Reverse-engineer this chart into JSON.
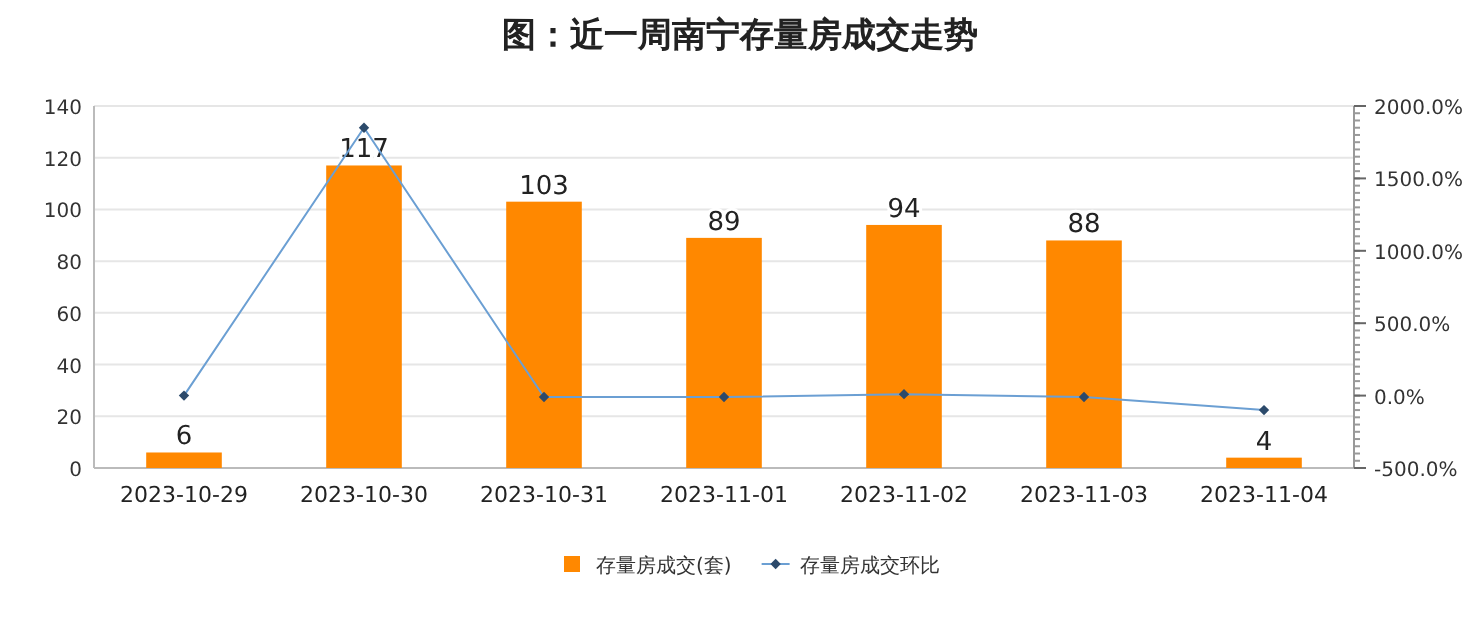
{
  "chart_data": {
    "type": "bar",
    "title": "图：近一周南宁存量房成交走势",
    "categories": [
      "2023-10-29",
      "2023-10-30",
      "2023-10-31",
      "2023-11-01",
      "2023-11-02",
      "2023-11-03",
      "2023-11-04"
    ],
    "series": [
      {
        "name": "存量房成交(套)",
        "color": "#ff8800",
        "values": [
          6,
          117,
          103,
          89,
          94,
          88,
          4
        ],
        "value_labels": [
          "6",
          "117",
          "103",
          "89",
          "94",
          "88",
          "4"
        ]
      },
      {
        "name": "存量房成交环比",
        "type": "line",
        "axis": "y2",
        "color": "#6b9fd3",
        "values": [
          0,
          1850,
          -10,
          -10,
          10,
          -10,
          -100
        ]
      }
    ],
    "marker": "diamond",
    "ylim": [
      0,
      140
    ],
    "yticks": [
      0,
      20,
      40,
      60,
      80,
      100,
      120,
      140
    ],
    "y2lim": [
      -500,
      2000
    ],
    "y2ticks": [
      {
        "value": -500,
        "label": "-500.0%"
      },
      {
        "value": 0,
        "label": "0.0%"
      },
      {
        "value": 500,
        "label": "500.0%"
      },
      {
        "value": 1000,
        "label": "1000.0%"
      },
      {
        "value": 1500,
        "label": "1500.0%"
      },
      {
        "value": 2000,
        "label": "2000.0%"
      }
    ],
    "grid": "y",
    "legend": "bottom"
  }
}
